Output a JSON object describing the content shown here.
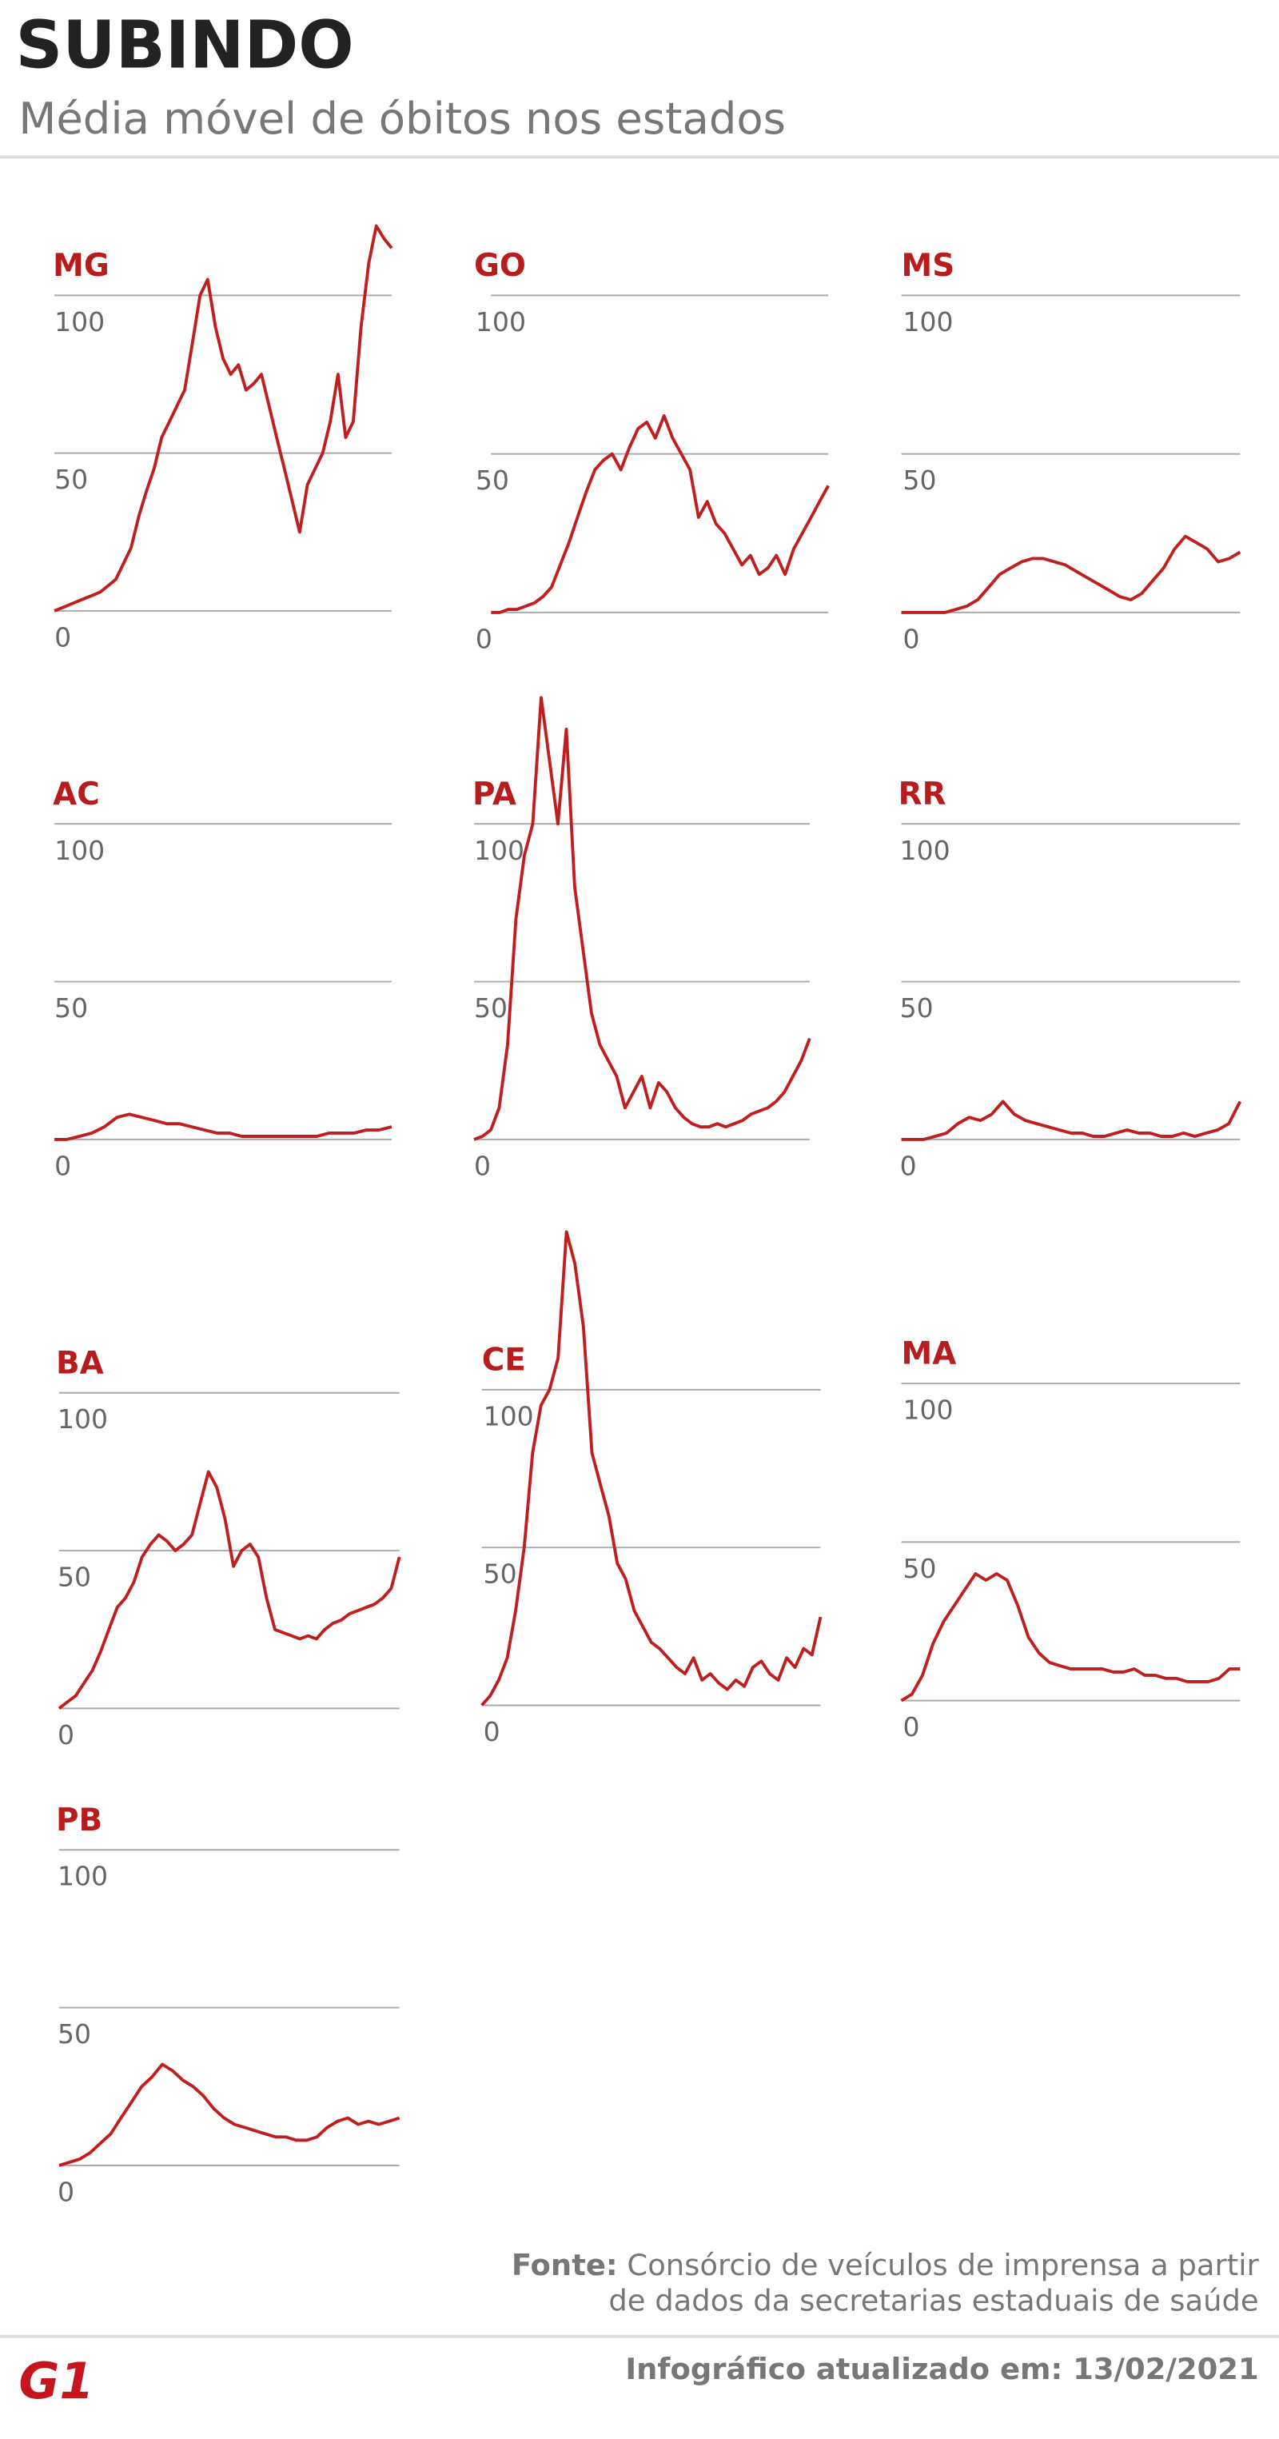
{
  "header": {
    "title": "SUBINDO",
    "subtitle": "Média móvel de óbitos nos estados"
  },
  "chart_data": [
    {
      "type": "line",
      "title": "MG",
      "color": "#c01f1f",
      "ylim": [
        0,
        100
      ],
      "yticks": [
        0,
        50,
        100
      ],
      "values": [
        0,
        1,
        2,
        3,
        4,
        5,
        6,
        8,
        10,
        15,
        20,
        30,
        38,
        45,
        55,
        60,
        65,
        70,
        85,
        100,
        105,
        90,
        80,
        75,
        78,
        70,
        72,
        75,
        65,
        55,
        45,
        35,
        25,
        40,
        45,
        50,
        60,
        75,
        55,
        60,
        90,
        110,
        122,
        118,
        115
      ]
    },
    {
      "type": "line",
      "title": "GO",
      "color": "#c01f1f",
      "ylim": [
        0,
        100
      ],
      "yticks": [
        0,
        50,
        100
      ],
      "values": [
        0,
        0,
        1,
        1,
        2,
        3,
        5,
        8,
        15,
        22,
        30,
        38,
        45,
        48,
        50,
        45,
        52,
        58,
        60,
        55,
        62,
        55,
        50,
        45,
        30,
        35,
        28,
        25,
        20,
        15,
        18,
        12,
        14,
        18,
        12,
        20,
        25,
        30,
        35,
        40
      ]
    },
    {
      "type": "line",
      "title": "MS",
      "color": "#c01f1f",
      "ylim": [
        0,
        100
      ],
      "yticks": [
        0,
        50,
        100
      ],
      "values": [
        0,
        0,
        0,
        0,
        0,
        1,
        2,
        4,
        8,
        12,
        14,
        16,
        17,
        17,
        16,
        15,
        13,
        11,
        9,
        7,
        5,
        4,
        6,
        10,
        14,
        20,
        24,
        22,
        20,
        16,
        17,
        19
      ]
    },
    {
      "type": "line",
      "title": "AC",
      "color": "#c01f1f",
      "ylim": [
        0,
        100
      ],
      "yticks": [
        0,
        50,
        100
      ],
      "values": [
        0,
        0,
        1,
        2,
        4,
        7,
        8,
        7,
        6,
        5,
        5,
        4,
        3,
        2,
        2,
        1,
        1,
        1,
        1,
        1,
        1,
        1,
        2,
        2,
        2,
        3,
        3,
        4
      ]
    },
    {
      "type": "line",
      "title": "PA",
      "color": "#c01f1f",
      "ylim": [
        0,
        100
      ],
      "yticks": [
        0,
        50,
        100
      ],
      "values": [
        0,
        1,
        3,
        10,
        30,
        70,
        90,
        100,
        140,
        120,
        100,
        130,
        80,
        60,
        40,
        30,
        25,
        20,
        10,
        15,
        20,
        10,
        18,
        15,
        10,
        7,
        5,
        4,
        4,
        5,
        4,
        5,
        6,
        8,
        9,
        10,
        12,
        15,
        20,
        25,
        32
      ]
    },
    {
      "type": "line",
      "title": "RR",
      "color": "#c01f1f",
      "ylim": [
        0,
        100
      ],
      "yticks": [
        0,
        50,
        100
      ],
      "values": [
        0,
        0,
        0,
        1,
        2,
        5,
        7,
        6,
        8,
        12,
        8,
        6,
        5,
        4,
        3,
        2,
        2,
        1,
        1,
        2,
        3,
        2,
        2,
        1,
        1,
        2,
        1,
        2,
        3,
        5,
        12
      ]
    },
    {
      "type": "line",
      "title": "BA",
      "color": "#c01f1f",
      "ylim": [
        0,
        100
      ],
      "yticks": [
        0,
        50,
        100
      ],
      "values": [
        0,
        2,
        4,
        8,
        12,
        18,
        25,
        32,
        35,
        40,
        48,
        52,
        55,
        53,
        50,
        52,
        55,
        65,
        75,
        70,
        60,
        45,
        50,
        52,
        48,
        35,
        25,
        24,
        23,
        22,
        23,
        22,
        25,
        27,
        28,
        30,
        31,
        32,
        33,
        35,
        38,
        48
      ]
    },
    {
      "type": "line",
      "title": "CE",
      "color": "#c01f1f",
      "ylim": [
        0,
        100
      ],
      "yticks": [
        0,
        50,
        100
      ],
      "values": [
        0,
        3,
        8,
        15,
        30,
        50,
        80,
        95,
        100,
        110,
        150,
        140,
        120,
        80,
        70,
        60,
        45,
        40,
        30,
        25,
        20,
        18,
        15,
        12,
        10,
        15,
        8,
        10,
        7,
        5,
        8,
        6,
        12,
        14,
        10,
        8,
        15,
        12,
        18,
        16,
        28
      ]
    },
    {
      "type": "line",
      "title": "MA",
      "color": "#c01f1f",
      "ylim": [
        0,
        100
      ],
      "yticks": [
        0,
        50,
        100
      ],
      "values": [
        0,
        2,
        8,
        18,
        25,
        30,
        35,
        40,
        38,
        40,
        38,
        30,
        20,
        15,
        12,
        11,
        10,
        10,
        10,
        10,
        9,
        9,
        10,
        8,
        8,
        7,
        7,
        6,
        6,
        6,
        7,
        10,
        10
      ]
    },
    {
      "type": "line",
      "title": "PB",
      "color": "#c01f1f",
      "ylim": [
        0,
        100
      ],
      "yticks": [
        0,
        50,
        100
      ],
      "values": [
        0,
        1,
        2,
        4,
        7,
        10,
        15,
        20,
        25,
        28,
        32,
        30,
        27,
        25,
        22,
        18,
        15,
        13,
        12,
        11,
        10,
        9,
        9,
        8,
        8,
        9,
        12,
        14,
        15,
        13,
        14,
        13,
        14,
        15
      ]
    }
  ],
  "source_label": "Fonte:",
  "source": [
    "Consórcio de veículos de imprensa a partir",
    "de dados da secretarias estaduais de saúde"
  ],
  "footer": {
    "logo": "G1",
    "updated": "Infográfico atualizado em: 13/02/2021"
  }
}
